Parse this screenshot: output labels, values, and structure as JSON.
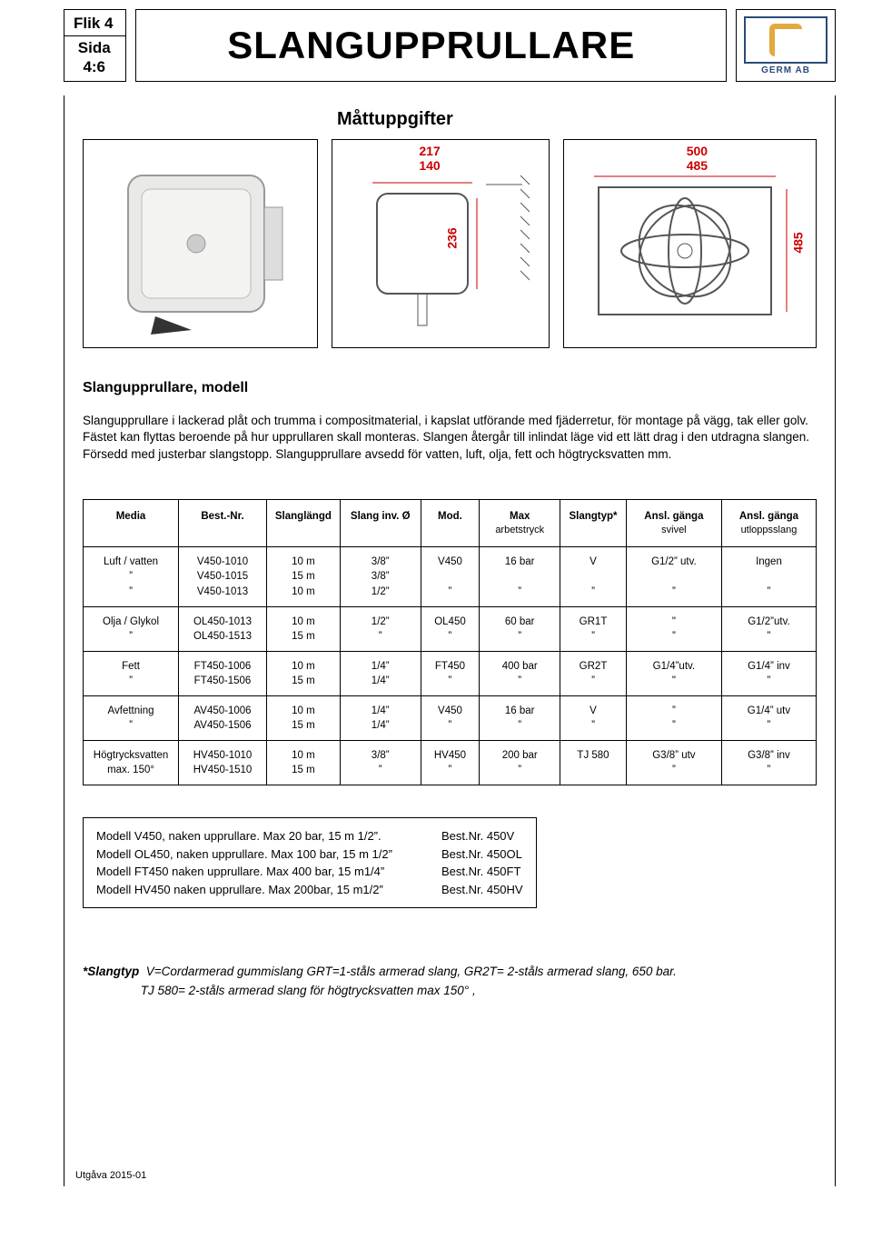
{
  "header": {
    "flik": "Flik 4",
    "sida_label": "Sida",
    "sida_value": "4:6",
    "title": "SLANGUPPRULLARE",
    "logo_text": "GERM AB"
  },
  "section_title": "Måttuppgifter",
  "dimensions": {
    "top1": "217",
    "top1b": "140",
    "side1": "236",
    "top2": "500",
    "top2b": "485",
    "side2": "485"
  },
  "intro": {
    "heading": "Slangupprullare, modell",
    "text": "Slangupprullare i lackerad plåt och trumma i compositmaterial, i kapslat utförande med fjäderretur, för montage på vägg, tak eller golv. Fästet kan flyttas beroende på hur upprullaren skall monteras. Slangen återgår till inlindat läge vid ett lätt drag i den utdragna slangen. Försedd med justerbar slangstopp. Slangupprullare avsedd för vatten, luft, olja, fett och högtrycksvatten mm."
  },
  "table": {
    "columns": [
      "Media",
      "Best.-Nr.",
      "Slanglängd",
      "Slang  inv. Ø",
      "Mod.",
      "Max arbetstryck",
      "Slangtyp*",
      "Ansl. gänga svivel",
      "Ansl. gänga utloppsslang"
    ],
    "col_widths": [
      "13%",
      "12%",
      "10%",
      "11%",
      "8%",
      "11%",
      "9%",
      "13%",
      "13%"
    ],
    "groups": [
      {
        "media": [
          "Luft / vatten",
          "”",
          "”"
        ],
        "bestnr": [
          "V450-1010",
          "V450-1015",
          "V450-1013"
        ],
        "langd": [
          "10 m",
          "15 m",
          "10 m"
        ],
        "inv": [
          "3/8”",
          "3/8”",
          "1/2”"
        ],
        "mod": [
          "V450",
          "",
          "”"
        ],
        "max": [
          "16 bar",
          "",
          "”"
        ],
        "slangtyp": [
          "V",
          "",
          "”"
        ],
        "svivel": [
          "G1/2” utv.",
          "",
          "”"
        ],
        "utlopp": [
          "Ingen",
          "",
          "”"
        ]
      },
      {
        "media": [
          "Olja / Glykol",
          "”"
        ],
        "bestnr": [
          "OL450-1013",
          "OL450-1513"
        ],
        "langd": [
          "10 m",
          "15 m"
        ],
        "inv": [
          "1/2”",
          "”"
        ],
        "mod": [
          "OL450",
          "”"
        ],
        "max": [
          "60 bar",
          "”"
        ],
        "slangtyp": [
          "GR1T",
          "”"
        ],
        "svivel": [
          "\"",
          "”"
        ],
        "utlopp": [
          "G1/2”utv.",
          "”"
        ]
      },
      {
        "media": [
          "Fett",
          "”"
        ],
        "bestnr": [
          "FT450-1006",
          "FT450-1506"
        ],
        "langd": [
          "10 m",
          "15 m"
        ],
        "inv": [
          "1/4”",
          "1/4”"
        ],
        "mod": [
          "FT450",
          "”"
        ],
        "max": [
          "400 bar",
          "”"
        ],
        "slangtyp": [
          "GR2T",
          "”"
        ],
        "svivel": [
          "G1/4”utv.",
          "\""
        ],
        "utlopp": [
          "G1/4” inv",
          "”"
        ]
      },
      {
        "media": [
          "Avfettning",
          "”"
        ],
        "bestnr": [
          "AV450-1006",
          "AV450-1506"
        ],
        "langd": [
          "10 m",
          "15 m"
        ],
        "inv": [
          "1/4”",
          "1/4”"
        ],
        "mod": [
          "V450",
          "”"
        ],
        "max": [
          "16 bar",
          "”"
        ],
        "slangtyp": [
          "V",
          "”"
        ],
        "svivel": [
          "”",
          "”"
        ],
        "utlopp": [
          "G1/4” utv",
          "”"
        ]
      },
      {
        "media": [
          "Högtrycksvatten",
          "max. 150°"
        ],
        "bestnr": [
          "HV450-1010",
          "HV450-1510"
        ],
        "langd": [
          "10 m",
          "15 m"
        ],
        "inv": [
          "3/8”",
          "”"
        ],
        "mod": [
          "HV450",
          "”"
        ],
        "max": [
          "200 bar",
          "”"
        ],
        "slangtyp": [
          "TJ 580",
          ""
        ],
        "svivel": [
          "G3/8” utv",
          "”"
        ],
        "utlopp": [
          "G3/8” inv",
          "”"
        ]
      }
    ]
  },
  "naken": [
    {
      "desc": "Modell V450, naken upprullare. Max 20 bar, 15 m 1/2”.",
      "bn": "Best.Nr.  450V"
    },
    {
      "desc": "Modell OL450, naken upprullare. Max 100 bar, 15 m 1/2”",
      "bn": "Best.Nr.  450OL"
    },
    {
      "desc": "Modell FT450 naken upprullare. Max 400 bar, 15 m1/4”",
      "bn": "Best.Nr.  450FT"
    },
    {
      "desc": "Modell HV450 naken upprullare. Max  200bar, 15 m1/2”",
      "bn": "Best.Nr.  450HV"
    }
  ],
  "footnote": {
    "label": "*Slangtyp",
    "text1": "V=Cordarmerad gummislang   GRT=1-ståls armerad slang,  GR2T= 2-ståls armerad slang, 650 bar.",
    "text2": "TJ 580= 2-ståls armerad slang för högtrycksvatten max 150° ,"
  },
  "utgava": "Utgåva 2015-01"
}
